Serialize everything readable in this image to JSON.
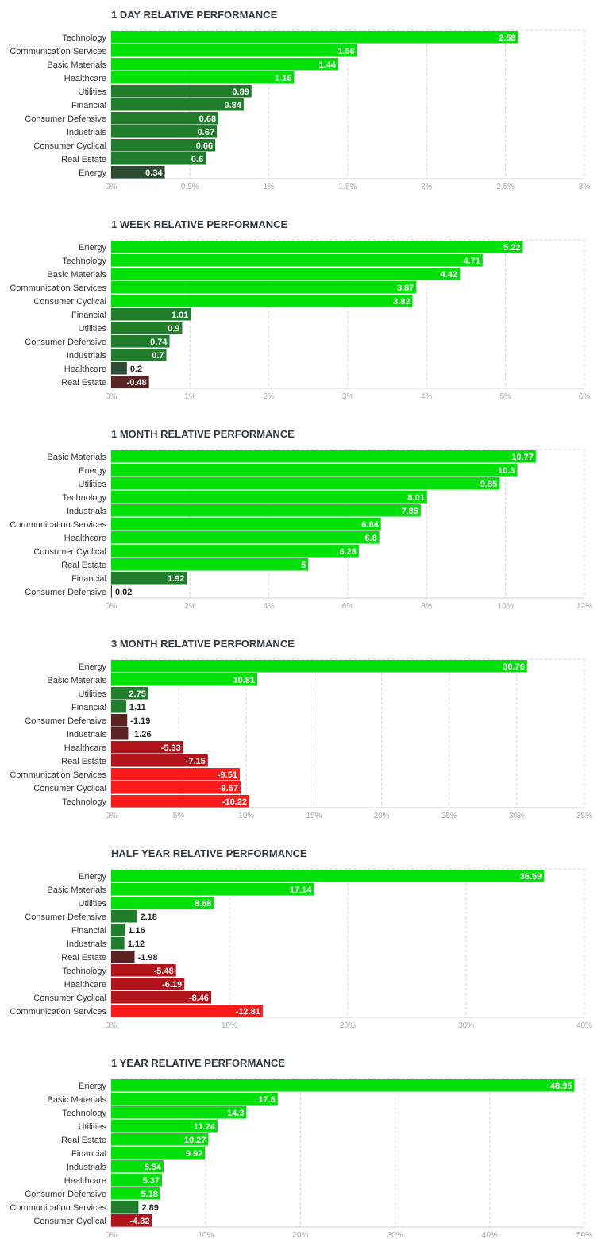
{
  "colors": {
    "strong_pos": "#00e10a",
    "mid_pos": "#1f7d2c",
    "weak_pos": "#2b4a2f",
    "weak_neg": "#5a2222",
    "mid_neg": "#b3131b",
    "strong_neg": "#ff1a1a",
    "grid": "#cfcfcf",
    "label": "#2f3438",
    "tick": "#a6a6a6",
    "title": "#333a40"
  },
  "chart_data": [
    {
      "type": "bar",
      "orientation": "horizontal",
      "title": "1 DAY RELATIVE PERFORMANCE",
      "categories": [
        "Technology",
        "Communication Services",
        "Basic Materials",
        "Healthcare",
        "Utilities",
        "Financial",
        "Consumer Defensive",
        "Industrials",
        "Consumer Cyclical",
        "Real Estate",
        "Energy"
      ],
      "values": [
        2.58,
        1.56,
        1.44,
        1.16,
        0.89,
        0.84,
        0.68,
        0.67,
        0.66,
        0.6,
        0.34
      ],
      "value_labels": [
        "2.58",
        "1.56",
        "1.44",
        "1.16",
        "0.89",
        "0.84",
        "0.68",
        "0.67",
        "0.66",
        "0.6",
        "0.34"
      ],
      "xlim": [
        0,
        3
      ],
      "tick_values": [
        0,
        0.5,
        1,
        1.5,
        2,
        2.5,
        3
      ],
      "tick_labels": [
        "0%",
        "0.5%",
        "1%",
        "1.5%",
        "2%",
        "2.5%",
        "3%"
      ],
      "grid": true
    },
    {
      "type": "bar",
      "orientation": "horizontal",
      "title": "1 WEEK RELATIVE PERFORMANCE",
      "categories": [
        "Energy",
        "Technology",
        "Basic Materials",
        "Communication Services",
        "Consumer Cyclical",
        "Financial",
        "Utilities",
        "Consumer Defensive",
        "Industrials",
        "Healthcare",
        "Real Estate"
      ],
      "values": [
        5.22,
        4.71,
        4.42,
        3.87,
        3.82,
        1.01,
        0.9,
        0.74,
        0.7,
        0.2,
        -0.48
      ],
      "value_labels": [
        "5.22",
        "4.71",
        "4.42",
        "3.87",
        "3.82",
        "1.01",
        "0.9",
        "0.74",
        "0.7",
        "0.2",
        "-0.48"
      ],
      "xlim": [
        0,
        6
      ],
      "tick_values": [
        0,
        1,
        2,
        3,
        4,
        5,
        6
      ],
      "tick_labels": [
        "0%",
        "1%",
        "2%",
        "3%",
        "4%",
        "5%",
        "6%"
      ],
      "grid": true
    },
    {
      "type": "bar",
      "orientation": "horizontal",
      "title": "1 MONTH RELATIVE PERFORMANCE",
      "categories": [
        "Basic Materials",
        "Energy",
        "Utilities",
        "Technology",
        "Industrials",
        "Communication Services",
        "Healthcare",
        "Consumer Cyclical",
        "Real Estate",
        "Financial",
        "Consumer Defensive"
      ],
      "values": [
        10.77,
        10.3,
        9.85,
        8.01,
        7.85,
        6.84,
        6.8,
        6.28,
        5,
        1.92,
        0.02
      ],
      "value_labels": [
        "10.77",
        "10.3",
        "9.85",
        "8.01",
        "7.85",
        "6.84",
        "6.8",
        "6.28",
        "5",
        "1.92",
        "0.02"
      ],
      "xlim": [
        0,
        12
      ],
      "tick_values": [
        0,
        2,
        4,
        6,
        8,
        10,
        12
      ],
      "tick_labels": [
        "0%",
        "2%",
        "4%",
        "6%",
        "8%",
        "10%",
        "12%"
      ],
      "grid": true
    },
    {
      "type": "bar",
      "orientation": "horizontal",
      "title": "3 MONTH RELATIVE PERFORMANCE",
      "categories": [
        "Energy",
        "Basic Materials",
        "Utilities",
        "Financial",
        "Consumer Defensive",
        "Industrials",
        "Healthcare",
        "Real Estate",
        "Communication Services",
        "Consumer Cyclical",
        "Technology"
      ],
      "values": [
        30.76,
        10.81,
        2.75,
        1.11,
        -1.19,
        -1.26,
        -5.33,
        -7.15,
        -9.51,
        -9.57,
        -10.22
      ],
      "value_labels": [
        "30.76",
        "10.81",
        "2.75",
        "1.11",
        "-1.19",
        "-1.26",
        "-5.33",
        "-7.15",
        "-9.51",
        "-9.57",
        "-10.22"
      ],
      "xlim": [
        0,
        35
      ],
      "tick_values": [
        0,
        5,
        10,
        15,
        20,
        25,
        30,
        35
      ],
      "tick_labels": [
        "0%",
        "5%",
        "10%",
        "15%",
        "20%",
        "25%",
        "30%",
        "35%"
      ],
      "grid": true
    },
    {
      "type": "bar",
      "orientation": "horizontal",
      "title": "HALF YEAR RELATIVE PERFORMANCE",
      "categories": [
        "Energy",
        "Basic Materials",
        "Utilities",
        "Consumer Defensive",
        "Financial",
        "Industrials",
        "Real Estate",
        "Technology",
        "Healthcare",
        "Consumer Cyclical",
        "Communication Services"
      ],
      "values": [
        36.59,
        17.14,
        8.68,
        2.18,
        1.16,
        1.12,
        -1.98,
        -5.48,
        -6.19,
        -8.46,
        -12.81
      ],
      "value_labels": [
        "36.59",
        "17.14",
        "8.68",
        "2.18",
        "1.16",
        "1.12",
        "-1.98",
        "-5.48",
        "-6.19",
        "-8.46",
        "-12.81"
      ],
      "xlim": [
        0,
        40
      ],
      "tick_values": [
        0,
        10,
        20,
        30,
        40
      ],
      "tick_labels": [
        "0%",
        "10%",
        "20%",
        "30%",
        "40%"
      ],
      "grid": true
    },
    {
      "type": "bar",
      "orientation": "horizontal",
      "title": "1 YEAR RELATIVE PERFORMANCE",
      "categories": [
        "Energy",
        "Basic Materials",
        "Technology",
        "Utilities",
        "Real Estate",
        "Financial",
        "Industrials",
        "Healthcare",
        "Consumer Defensive",
        "Communication Services",
        "Consumer Cyclical"
      ],
      "values": [
        48.95,
        17.6,
        14.3,
        11.24,
        10.27,
        9.92,
        5.54,
        5.37,
        5.18,
        2.89,
        -4.32
      ],
      "value_labels": [
        "48.95",
        "17.6",
        "14.3",
        "11.24",
        "10.27",
        "9.92",
        "5.54",
        "5.37",
        "5.18",
        "2.89",
        "-4.32"
      ],
      "xlim": [
        0,
        50
      ],
      "tick_values": [
        0,
        10,
        20,
        30,
        40,
        50
      ],
      "tick_labels": [
        "0%",
        "10%",
        "20%",
        "30%",
        "40%",
        "50%"
      ],
      "grid": true
    }
  ]
}
